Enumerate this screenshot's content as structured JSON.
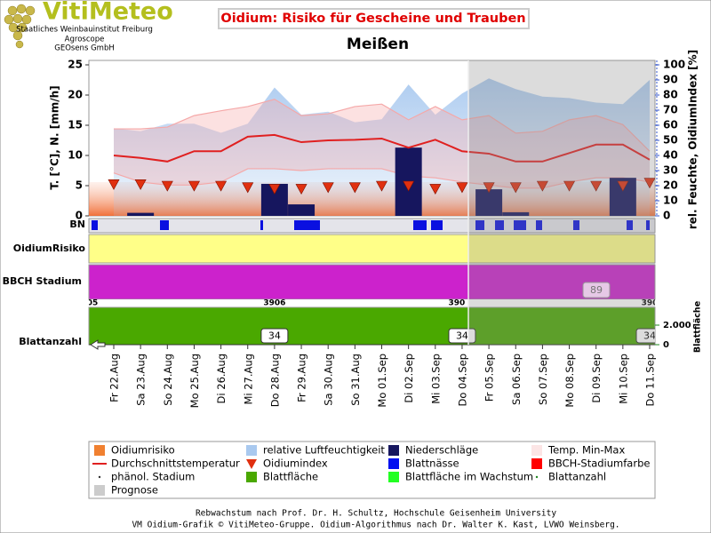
{
  "logo": {
    "name": "VitiMeteo",
    "lines": [
      "Staatliches Weinbauinstitut Freiburg",
      "Agroscope",
      "GEOsens GmbH"
    ]
  },
  "chart_data": {
    "type": "line",
    "title": "Oidium: Risiko für Gescheine und Trauben",
    "subtitle": "Meißen",
    "y_label": "T. [°C], N. [mm/h]",
    "y2_label": "rel. Feuchte, OidiumIndex [%]",
    "categories": [
      "Fr 22.Aug",
      "Sa 23.Aug",
      "So 24.Aug",
      "Mo 25.Aug",
      "Di 26.Aug",
      "Mi 27.Aug",
      "Do 28.Aug",
      "Fr 29.Aug",
      "Sa 30.Aug",
      "So 31.Aug",
      "Mo 01.Sep",
      "Di 02.Sep",
      "Mi 03.Sep",
      "Do 04.Sep",
      "Fr 05.Sep",
      "Sa 06.Sep",
      "So 07.Sep",
      "Mo 08.Sep",
      "Di 09.Sep",
      "Mi 10.Sep",
      "Do 11.Sep"
    ],
    "ylim": [
      0,
      25
    ],
    "yticks": [
      0,
      5,
      10,
      15,
      20,
      25
    ],
    "y2lim": [
      0,
      100
    ],
    "y2ticks": [
      0,
      10,
      20,
      30,
      40,
      50,
      60,
      70,
      80,
      90,
      100
    ],
    "series": [
      {
        "name": "relative Luftfeuchtigkeit",
        "color": "#a9c9ef",
        "axis": "y2",
        "values": [
          58,
          56,
          61,
          61,
          55,
          61,
          85,
          67,
          69,
          62,
          64,
          87,
          67,
          81,
          91,
          84,
          79,
          78,
          75,
          74,
          90
        ]
      },
      {
        "name": "Niederschläge",
        "color": "#16165e",
        "values": [
          0,
          0.5,
          0,
          0,
          0,
          0,
          5.3,
          1.9,
          0,
          0,
          0,
          11.3,
          0,
          0,
          4.4,
          0.6,
          0,
          0,
          0,
          6.3,
          0
        ]
      },
      {
        "name": "Temp. Min-Max",
        "color": "#f5a8a8",
        "values": [
          14.4,
          14.4,
          14.7,
          16.6,
          17.4,
          18.1,
          19.3,
          16.6,
          16.9,
          18.1,
          18.5,
          15.9,
          18.1,
          15.9,
          16.6,
          13.7,
          14,
          15.9,
          16.6,
          15.1,
          10.7
        ],
        "lows": [
          7.1,
          5.6,
          5.1,
          5.1,
          5.6,
          7.8,
          7.8,
          7.5,
          7.8,
          7.8,
          7.8,
          6.6,
          6.3,
          5.6,
          5.1,
          4.6,
          4.6,
          5.6,
          6.3,
          6.3,
          5.6
        ]
      },
      {
        "name": "Durchschnittstemperatur",
        "color": "#e02020",
        "values": [
          10,
          9.6,
          9,
          10.7,
          10.7,
          13.1,
          13.4,
          12.2,
          12.5,
          12.6,
          12.8,
          11.3,
          12.6,
          10.7,
          10.3,
          9,
          9,
          10.4,
          11.8,
          11.8,
          9.3
        ]
      },
      {
        "name": "Oidiumindex",
        "color": "#e03010",
        "axis": "y2",
        "values": [
          21,
          21,
          20,
          20,
          20,
          19,
          18,
          18,
          19,
          19,
          20,
          20,
          18,
          19,
          19,
          19,
          20,
          20,
          20,
          20,
          22
        ]
      }
    ]
  },
  "panels": {
    "bn": "BN",
    "risk": "OidiumRisiko",
    "bbch": "BBCH Stadium",
    "bbch_labels": [
      "05",
      "3906",
      "390",
      "390"
    ],
    "bbch_stage": "89",
    "leaf": "Blattanzahl",
    "leaf_area": "Blattfläche",
    "leaf_ticks": [
      {
        "value": 2000,
        "label": "2.000"
      },
      0
    ],
    "leaf_count": [
      null,
      null,
      null,
      null,
      null,
      null,
      34,
      null,
      null,
      null,
      null,
      null,
      null,
      34,
      null,
      null,
      null,
      null,
      null,
      null,
      34
    ]
  },
  "legend_items": [
    {
      "name": "Oidiumrisiko",
      "color": "#f08030"
    },
    {
      "name": "Blattnässe",
      "color": "#0010f0"
    },
    {
      "name": "BBCH-Stadiumfarbe",
      "color": "#ff0000"
    },
    {
      "name": "phänol. Stadium",
      "color": "#333333"
    },
    {
      "name": "Blattfläche",
      "color": "#4aa800"
    },
    {
      "name": "Blattfläche im Wachstum",
      "color": "#22ff22"
    },
    {
      "name": "Blattanzahl",
      "color": "#228822"
    },
    {
      "name": "Prognose",
      "color": "#cccccc"
    }
  ],
  "footer": [
    "Rebwachstum nach Prof. Dr. H. Schultz, Hochschule Geisenheim University",
    "VM Oidium-Grafik © VitiMeteo-Gruppe. Oidium-Algorithmus nach Dr. Walter K. Kast, LVWO Weinsberg."
  ]
}
